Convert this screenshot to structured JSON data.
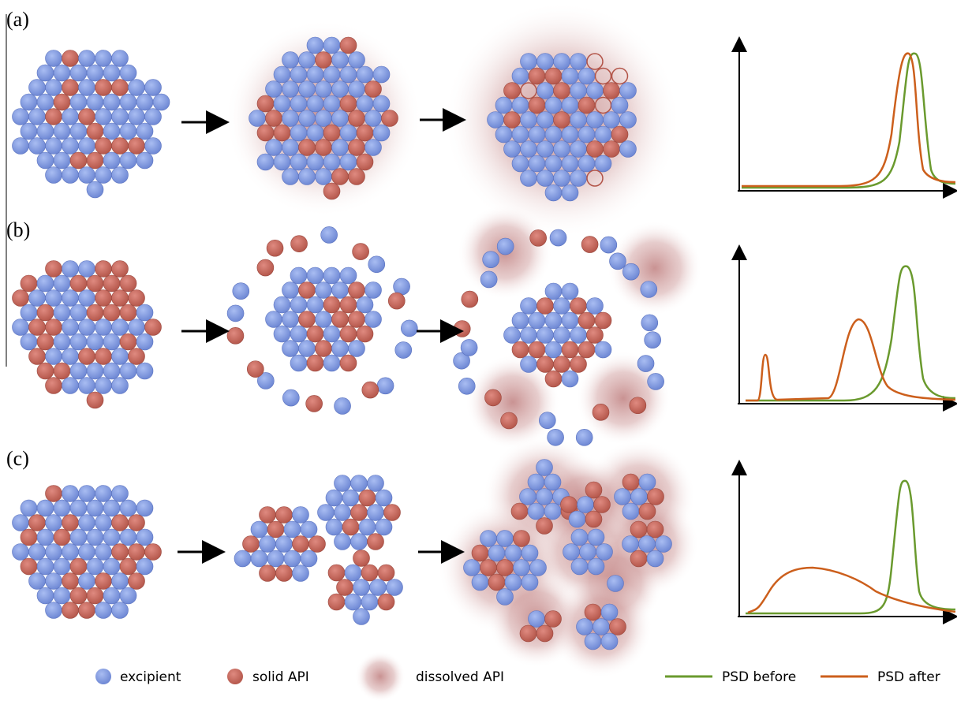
{
  "panels": [
    {
      "label": "(a)"
    },
    {
      "label": "(b)"
    },
    {
      "label": "(c)"
    }
  ],
  "legend": {
    "excipient": "excipient",
    "solid_api": "solid API",
    "dissolved_api": "dissolved API",
    "psd_before": "PSD before",
    "psd_after": "PSD after"
  }
}
